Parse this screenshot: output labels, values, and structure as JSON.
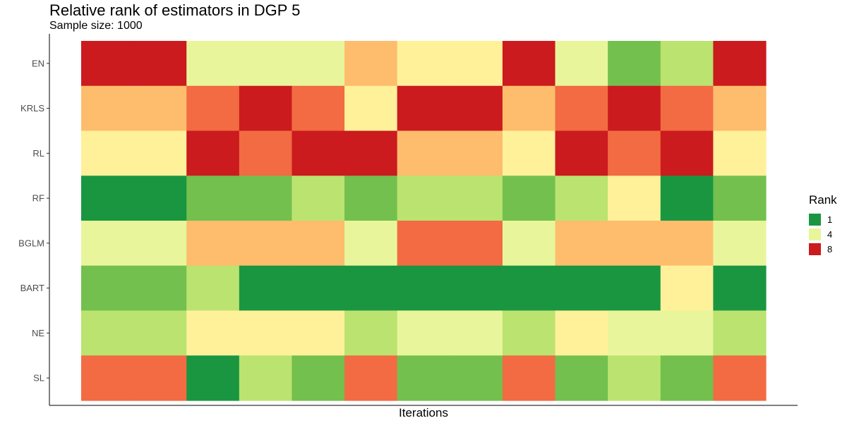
{
  "chart_data": {
    "type": "heatmap",
    "title": "Relative rank of estimators in DGP 5",
    "subtitle": "Sample size: 1000",
    "xlabel": "Iterations",
    "ylabel": "",
    "y_categories": [
      "EN",
      "KRLS",
      "RL",
      "RF",
      "BGLM",
      "BART",
      "NE",
      "SL"
    ],
    "x_iterations": 13,
    "rank_colors": [
      "#1a9641",
      "#73c04e",
      "#bbe36f",
      "#e9f59b",
      "#fff09a",
      "#fdbd6c",
      "#f26b42",
      "#cb1b1e"
    ],
    "rows": [
      {
        "name": "EN",
        "values": [
          8,
          8,
          4,
          4,
          4,
          6,
          5,
          5,
          8,
          4,
          2,
          3,
          8
        ]
      },
      {
        "name": "KRLS",
        "values": [
          6,
          6,
          7,
          8,
          7,
          5,
          8,
          8,
          6,
          7,
          8,
          7,
          6
        ]
      },
      {
        "name": "RL",
        "values": [
          5,
          5,
          8,
          7,
          8,
          8,
          6,
          6,
          5,
          8,
          7,
          8,
          5
        ]
      },
      {
        "name": "RF",
        "values": [
          1,
          1,
          2,
          2,
          3,
          2,
          3,
          3,
          2,
          3,
          5,
          1,
          2
        ]
      },
      {
        "name": "BGLM",
        "values": [
          4,
          4,
          6,
          6,
          6,
          4,
          7,
          7,
          4,
          6,
          6,
          6,
          4
        ]
      },
      {
        "name": "BART",
        "values": [
          2,
          2,
          3,
          1,
          1,
          1,
          1,
          1,
          1,
          1,
          1,
          5,
          1
        ]
      },
      {
        "name": "NE",
        "values": [
          3,
          3,
          5,
          5,
          5,
          3,
          4,
          4,
          3,
          5,
          4,
          4,
          3
        ]
      },
      {
        "name": "SL",
        "values": [
          7,
          7,
          1,
          3,
          2,
          7,
          2,
          2,
          7,
          2,
          3,
          2,
          7
        ]
      }
    ],
    "legend": {
      "title": "Rank",
      "placement": "right",
      "items": [
        {
          "label": "1",
          "color": "#1a9641"
        },
        {
          "label": "4",
          "color": "#e9f59b"
        },
        {
          "label": "8",
          "color": "#cb1b1e"
        }
      ]
    },
    "grid": false
  }
}
